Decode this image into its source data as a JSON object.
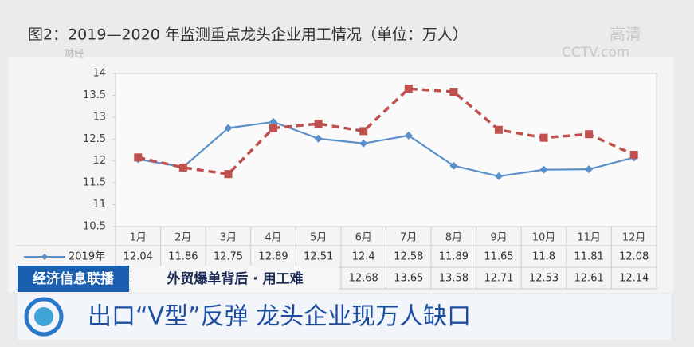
{
  "chart_data": {
    "type": "line",
    "title": "图2：2019—2020 年监测重点龙头企业用工情况（单位：万人）",
    "categories": [
      "1月",
      "2月",
      "3月",
      "4月",
      "5月",
      "6月",
      "7月",
      "8月",
      "9月",
      "10月",
      "11月",
      "12月"
    ],
    "series": [
      {
        "name": "2019年",
        "color": "#5b8fc9",
        "values": [
          12.04,
          11.86,
          12.75,
          12.89,
          12.51,
          12.4,
          12.58,
          11.89,
          11.65,
          11.8,
          11.81,
          12.08
        ]
      },
      {
        "color": "#c0504d",
        "values": [
          12.08,
          11.85,
          11.7,
          12.75,
          12.85,
          12.68,
          13.65,
          13.58,
          12.71,
          12.53,
          12.61,
          12.14
        ]
      }
    ],
    "ylim": [
      10.5,
      14
    ],
    "yticks": [
      10.5,
      11,
      11.5,
      12,
      12.5,
      13,
      13.5,
      14
    ],
    "grid": false
  },
  "overlay": {
    "logo": "财经",
    "hd": "高清",
    "site": "CCTV.com",
    "channel": "经济信息联播",
    "topic": "外贸爆单背后 · 用工难",
    "headline": "出口“V型”反弹 龙头企业现万人缺口"
  }
}
